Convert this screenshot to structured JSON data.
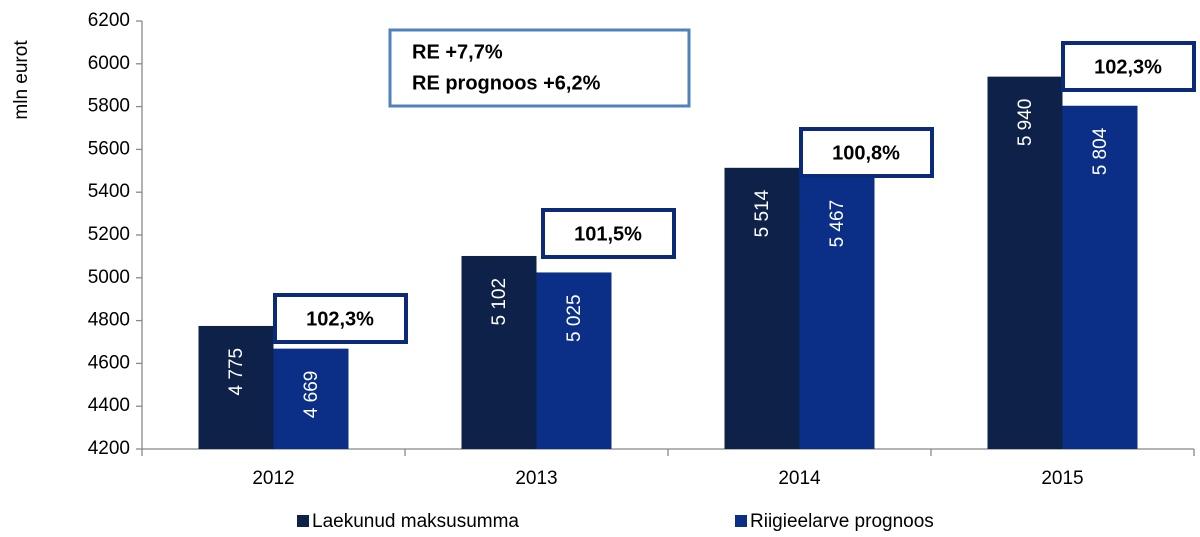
{
  "chart_data": {
    "type": "bar",
    "ylabel": "mln eurot",
    "categories": [
      "2012",
      "2013",
      "2014",
      "2015"
    ],
    "series": [
      {
        "name": "Laekunud maksusumma",
        "color": "#0e2148",
        "values": [
          4775,
          5102,
          5514,
          5940
        ],
        "value_labels": [
          "4 775",
          "5 102",
          "5 514",
          "5 940"
        ]
      },
      {
        "name": "Riigieelarve prognoos",
        "color": "#0b2f87",
        "values": [
          4669,
          5025,
          5467,
          5804
        ],
        "value_labels": [
          "4 669",
          "5 025",
          "5 467",
          "5 804"
        ]
      }
    ],
    "ylim": [
      4200,
      6200
    ],
    "yticks": [
      4200,
      4400,
      4600,
      4800,
      5000,
      5200,
      5400,
      5600,
      5800,
      6000,
      6200
    ],
    "annotations": [
      "102,3%",
      "101,5%",
      "100,8%",
      "102,3%"
    ],
    "note": [
      "RE  +7,7%",
      "RE prognoos +6,2%"
    ],
    "legend": "bottom"
  }
}
